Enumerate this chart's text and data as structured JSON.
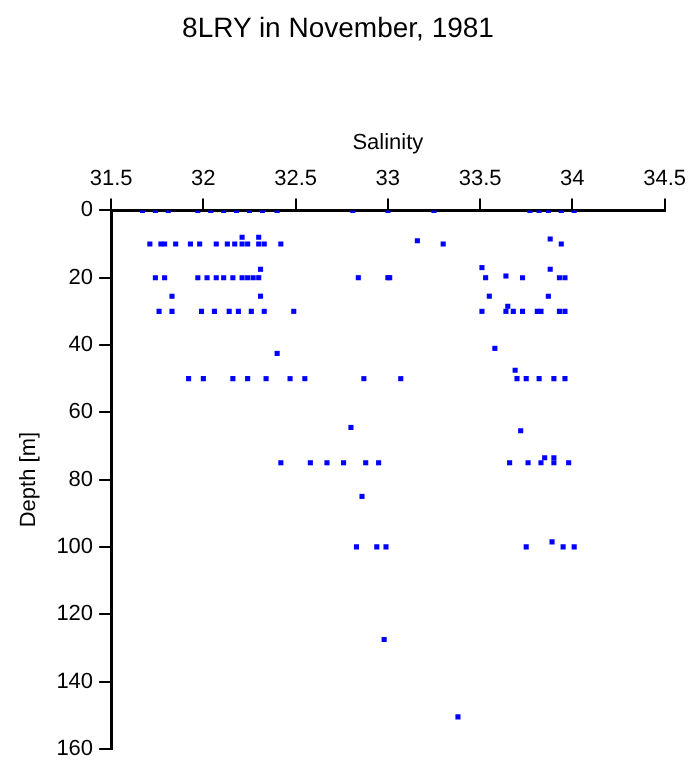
{
  "chart_data": {
    "type": "scatter",
    "title": "8LRY in November, 1981",
    "xlabel": "Salinity",
    "ylabel": "Depth [m]",
    "xlim": [
      31.5,
      34.5
    ],
    "xticks": [
      31.5,
      32,
      32.5,
      33,
      33.5,
      34,
      34.5
    ],
    "ylim": [
      160,
      0
    ],
    "yticks": [
      0,
      20,
      40,
      60,
      80,
      100,
      120,
      140,
      160
    ],
    "grid": false,
    "legend": false,
    "marker": "square",
    "series": [
      {
        "color": "#0000ff",
        "x": [
          31.67,
          31.74,
          31.81,
          31.97,
          32.04,
          32.11,
          32.18,
          32.25,
          32.32,
          32.4,
          32.81,
          33.0,
          33.25,
          33.77,
          33.82,
          33.87,
          33.94,
          34.01,
          31.71,
          31.77,
          31.79,
          31.85,
          31.93,
          31.98,
          32.07,
          32.13,
          32.17,
          32.21,
          32.24,
          32.3,
          32.33,
          32.42,
          33.16,
          33.3,
          33.94,
          33.88,
          32.21,
          32.3,
          31.74,
          31.79,
          31.97,
          32.02,
          32.07,
          32.11,
          32.16,
          32.21,
          32.24,
          32.27,
          32.3,
          32.84,
          33.01,
          33.0,
          33.53,
          33.73,
          33.93,
          33.96,
          33.64,
          33.51,
          33.88,
          32.31,
          31.83,
          32.31,
          33.55,
          33.87,
          33.65,
          31.76,
          31.83,
          31.99,
          32.06,
          32.14,
          32.19,
          32.26,
          32.33,
          32.49,
          33.51,
          33.64,
          33.68,
          33.73,
          33.81,
          33.83,
          33.93,
          33.96,
          32.4,
          33.58,
          33.69,
          31.92,
          32.0,
          32.16,
          32.24,
          32.34,
          32.47,
          32.55,
          32.87,
          33.07,
          33.7,
          33.75,
          33.82,
          33.9,
          33.96,
          32.8,
          33.72,
          32.42,
          32.58,
          32.67,
          32.76,
          32.88,
          32.95,
          33.66,
          33.76,
          33.83,
          33.9,
          33.98,
          33.85,
          33.9,
          32.86,
          32.83,
          32.94,
          32.99,
          33.75,
          33.89,
          33.95,
          34.01,
          32.98,
          33.38
        ],
        "values": [
          0,
          0,
          0,
          0,
          0,
          0,
          0,
          0,
          0,
          0,
          0,
          0,
          0,
          0,
          0,
          0,
          0,
          0,
          10,
          10,
          10,
          10,
          10,
          10,
          10,
          10,
          10,
          10,
          10,
          10,
          10,
          10,
          9,
          10,
          10,
          8.5,
          8,
          8,
          20,
          20,
          20,
          20,
          20,
          20,
          20,
          20,
          20,
          20,
          20,
          20,
          20,
          20,
          20,
          20,
          20,
          20,
          19.5,
          17,
          17.5,
          17.5,
          25.5,
          25.5,
          25.5,
          25.5,
          28.5,
          30,
          30,
          30,
          30,
          30,
          30,
          30,
          30,
          30,
          30,
          30,
          30,
          30,
          30,
          30,
          30,
          30,
          42.5,
          41,
          47.5,
          50,
          50,
          50,
          50,
          50,
          50,
          50,
          50,
          50,
          50,
          50,
          50,
          50,
          50,
          64.5,
          65.5,
          75,
          75,
          75,
          75,
          75,
          75,
          75,
          75,
          75,
          75,
          75,
          73.5,
          73.5,
          85,
          100,
          100,
          100,
          100,
          98.5,
          100,
          100,
          127.5,
          150.5
        ]
      }
    ]
  }
}
